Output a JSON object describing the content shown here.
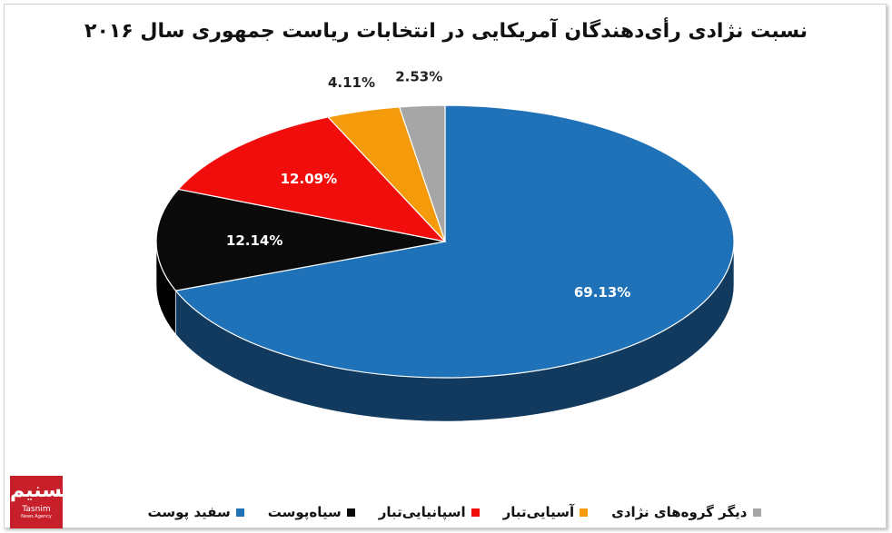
{
  "chart_data": {
    "type": "pie",
    "title": "نسبت نژادی رأی‌دهندگان آمریکایی در انتخابات ریاست جمهوری سال ۲۰۱۶",
    "slices": [
      {
        "name": "سفید پوست",
        "value": 69.13,
        "label": "69.13%",
        "color": "#1f72b8",
        "side_color": "#113a5e"
      },
      {
        "name": "سیاه‌پوست",
        "value": 12.14,
        "label": "12.14%",
        "color": "#0a0a0a",
        "side_color": "#000000"
      },
      {
        "name": "اسپانیایی‌تبار",
        "value": 12.09,
        "label": "12.09%",
        "color": "#f20d0d",
        "side_color": "#8a0707"
      },
      {
        "name": "آسیایی‌تبار",
        "value": 4.11,
        "label": "4.11%",
        "color": "#f59a0a",
        "side_color": "#8a5606"
      },
      {
        "name": "دیگر گروه‌های نژادی",
        "value": 2.53,
        "label": "2.53%",
        "color": "#a6a6a6",
        "side_color": "#5e5e5e"
      }
    ],
    "legend_position": "bottom"
  },
  "logo": {
    "mark": "تسنیم",
    "latin": "Tasnim",
    "sub": "News Agency"
  }
}
